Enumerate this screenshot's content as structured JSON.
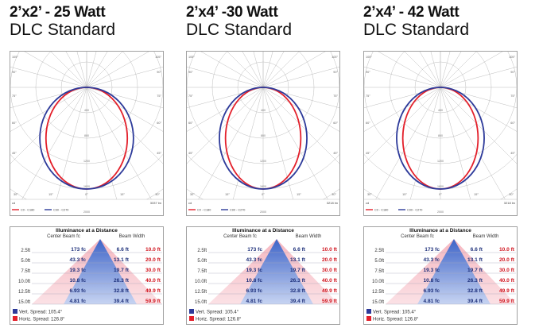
{
  "colors": {
    "c0_curve": "#e3202b",
    "c90_curve": "#2d3a9a",
    "grid": "#bdbdbd"
  },
  "panels": [
    {
      "title": "2’x2’ - 25 Watt",
      "subtitle": "DLC Standard",
      "polar": {
        "corner_labels": {
          "tl": "105°",
          "tr": "105°",
          "l2": "90°",
          "r2": "90°",
          "l3": "75°",
          "r3": "75°",
          "l4": "60°",
          "r4": "60°",
          "l5": "45°",
          "r5": "45°"
        },
        "bottom_labels": [
          "30°",
          "15°",
          "0°",
          "15°",
          "30°"
        ],
        "radial_labels": [
          "400",
          "800",
          "1200",
          "1600",
          "2000"
        ],
        "peak_cd": 1600,
        "legend_unit": "cd",
        "legend": [
          "C0 - C180",
          "C90 - C270"
        ],
        "lumens": "3337 lm",
        "c0_shape": {
          "rx": 0.8,
          "ry": 1.0
        },
        "c90_shape": {
          "rx": 0.92,
          "ry": 1.0
        }
      },
      "illuminance": {
        "title": "Illuminance at a Distance",
        "col_center": "Center Beam fc",
        "col_width": "Beam Width",
        "rows": [
          {
            "dist": "2.5ft",
            "fc": "173 fc",
            "v": "6.6 ft",
            "h": "10.0 ft"
          },
          {
            "dist": "5.0ft",
            "fc": "43.3 fc",
            "v": "13.1 ft",
            "h": "20.0 ft"
          },
          {
            "dist": "7.5ft",
            "fc": "19.3 fc",
            "v": "19.7 ft",
            "h": "30.0 ft"
          },
          {
            "dist": "10.0ft",
            "fc": "10.8 fc",
            "v": "26.3 ft",
            "h": "40.0 ft"
          },
          {
            "dist": "12.5ft",
            "fc": "6.93 fc",
            "v": "32.8 ft",
            "h": "49.9 ft"
          },
          {
            "dist": "15.0ft",
            "fc": "4.81 fc",
            "v": "39.4 ft",
            "h": "59.9 ft"
          }
        ],
        "vert_spread": "Vert. Spread: 105.4°",
        "horiz_spread": "Horiz. Spread: 126.8°"
      }
    },
    {
      "title": "2’x4’ -30 Watt",
      "subtitle": "DLC Standard",
      "polar": {
        "corner_labels": {
          "tl": "105°",
          "tr": "105°",
          "l2": "90°",
          "r2": "90°",
          "l3": "75°",
          "r3": "75°",
          "l4": "60°",
          "r4": "60°",
          "l5": "45°",
          "r5": "45°"
        },
        "bottom_labels": [
          "30°",
          "15°",
          "0°",
          "15°",
          "30°"
        ],
        "radial_labels": [
          "400",
          "800",
          "1200",
          "1600",
          "2000"
        ],
        "peak_cd": 1600,
        "legend_unit": "cd",
        "legend": [
          "C0 - C180",
          "C90 - C270"
        ],
        "lumens": "3218 lm",
        "c0_shape": {
          "rx": 0.74,
          "ry": 1.0
        },
        "c90_shape": {
          "rx": 0.86,
          "ry": 1.0
        }
      },
      "illuminance": {
        "title": "Illuminance at a Distance",
        "col_center": "Center Beam fc",
        "col_width": "Beam Width",
        "rows": [
          {
            "dist": "2.5ft",
            "fc": "173 fc",
            "v": "6.6 ft",
            "h": "10.0 ft"
          },
          {
            "dist": "5.0ft",
            "fc": "43.3 fc",
            "v": "13.1 ft",
            "h": "20.0 ft"
          },
          {
            "dist": "7.5ft",
            "fc": "19.3 fc",
            "v": "19.7 ft",
            "h": "30.0 ft"
          },
          {
            "dist": "10.0ft",
            "fc": "10.8 fc",
            "v": "26.3 ft",
            "h": "40.0 ft"
          },
          {
            "dist": "12.5ft",
            "fc": "6.93 fc",
            "v": "32.8 ft",
            "h": "49.9 ft"
          },
          {
            "dist": "15.0ft",
            "fc": "4.81 fc",
            "v": "39.4 ft",
            "h": "59.9 ft"
          }
        ],
        "vert_spread": "Vert. Spread: 105.4°",
        "horiz_spread": "Horiz. Spread: 126.8°"
      }
    },
    {
      "title": "2’x4’ - 42 Watt",
      "subtitle": "DLC Standard",
      "polar": {
        "corner_labels": {
          "tl": "105°",
          "tr": "105°",
          "l2": "90°",
          "r2": "90°",
          "l3": "75°",
          "r3": "75°",
          "l4": "60°",
          "r4": "60°",
          "l5": "45°",
          "r5": "45°"
        },
        "bottom_labels": [
          "30°",
          "15°",
          "0°",
          "15°",
          "30°"
        ],
        "radial_labels": [
          "400",
          "800",
          "1200",
          "1600",
          "2000"
        ],
        "peak_cd": 1600,
        "legend_unit": "cd",
        "legend": [
          "C0 - C180",
          "C90 - C270"
        ],
        "lumens": "3218 lm",
        "c0_shape": {
          "rx": 0.74,
          "ry": 1.0
        },
        "c90_shape": {
          "rx": 0.86,
          "ry": 1.0
        }
      },
      "illuminance": {
        "title": "Illuminance at a Distance",
        "col_center": "Center Beam fc",
        "col_width": "Beam Width",
        "rows": [
          {
            "dist": "2.5ft",
            "fc": "173 fc",
            "v": "6.6 ft",
            "h": "10.0 ft"
          },
          {
            "dist": "5.0ft",
            "fc": "43.3 fc",
            "v": "13.1 ft",
            "h": "20.0 ft"
          },
          {
            "dist": "7.5ft",
            "fc": "19.3 fc",
            "v": "19.7 ft",
            "h": "30.0 ft"
          },
          {
            "dist": "10.0ft",
            "fc": "10.8 fc",
            "v": "26.3 ft",
            "h": "40.0 ft"
          },
          {
            "dist": "12.5ft",
            "fc": "6.93 fc",
            "v": "32.8 ft",
            "h": "49.9 ft"
          },
          {
            "dist": "15.0ft",
            "fc": "4.81 fc",
            "v": "39.4 ft",
            "h": "59.9 ft"
          }
        ],
        "vert_spread": "Vert. Spread: 105.4°",
        "horiz_spread": "Horiz. Spread: 126.8°"
      }
    }
  ]
}
